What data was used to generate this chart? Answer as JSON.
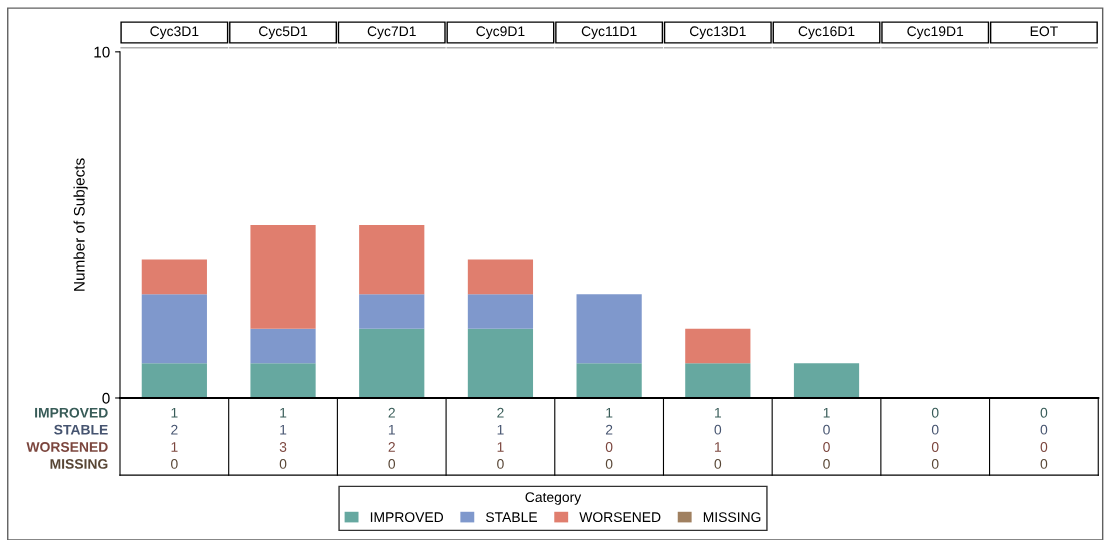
{
  "chart_data": {
    "type": "bar",
    "stacked": true,
    "ylabel": "Number of Subjects",
    "legend_title": "Category",
    "legend": "bottom",
    "categories": [
      "Cyc3D1",
      "Cyc5D1",
      "Cyc7D1",
      "Cyc9D1",
      "Cyc11D1",
      "Cyc13D1",
      "Cyc16D1",
      "Cyc19D1",
      "EOT"
    ],
    "series": [
      {
        "name": "IMPROVED",
        "color": "#66a8a0",
        "values": [
          1,
          1,
          2,
          2,
          1,
          1,
          1,
          0,
          0
        ]
      },
      {
        "name": "STABLE",
        "color": "#7f98cc",
        "values": [
          2,
          1,
          1,
          1,
          2,
          0,
          0,
          0,
          0
        ]
      },
      {
        "name": "WORSENED",
        "color": "#e07e6e",
        "values": [
          1,
          3,
          2,
          1,
          0,
          1,
          0,
          0,
          0
        ]
      },
      {
        "name": "MISSING",
        "color": "#a08060",
        "values": [
          0,
          0,
          0,
          0,
          0,
          0,
          0,
          0,
          0
        ]
      }
    ],
    "ylim": [
      0,
      10
    ],
    "yticks": [
      0,
      10
    ],
    "data_labels": true,
    "grid": false
  }
}
